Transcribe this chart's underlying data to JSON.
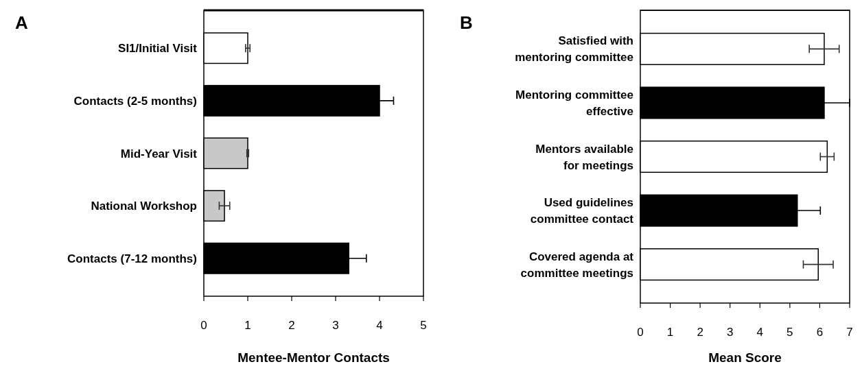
{
  "chart_data": [
    {
      "type": "bar",
      "orientation": "horizontal",
      "title": "A",
      "categories": [
        "SI1/Initial Visit",
        "Contacts (2-5 months)",
        "Mid-Year Visit",
        "National Workshop",
        "Contacts (7-12 months)"
      ],
      "values": [
        1.0,
        4.0,
        1.0,
        0.47,
        3.3
      ],
      "colors": [
        "#ffffff",
        "#000000",
        "#c8c8c8",
        "#c8c8c8",
        "#000000"
      ],
      "errors": [
        0.05,
        0.32,
        0.02,
        0.12,
        0.4
      ],
      "xlim": [
        0,
        5
      ],
      "xticks": [
        0,
        1,
        2,
        3,
        4,
        5
      ],
      "xlabel": "Mentee-Mentor Contacts"
    },
    {
      "type": "bar",
      "orientation": "horizontal",
      "title": "B",
      "categories": [
        "Satisfied with mentoring committee",
        "Mentoring committee effective",
        "Mentors available for meetings",
        "Used guidelines committee contact",
        "Covered agenda at committee meetings"
      ],
      "values": [
        6.15,
        6.15,
        6.25,
        5.25,
        5.95
      ],
      "colors": [
        "#ffffff",
        "#000000",
        "#ffffff",
        "#000000",
        "#ffffff"
      ],
      "errors": [
        0.5,
        0.85,
        0.23,
        0.77,
        0.5
      ],
      "xlim": [
        0,
        7
      ],
      "xticks": [
        0,
        1,
        2,
        3,
        4,
        5,
        6,
        7
      ],
      "xlabel": "Mean Score"
    }
  ]
}
